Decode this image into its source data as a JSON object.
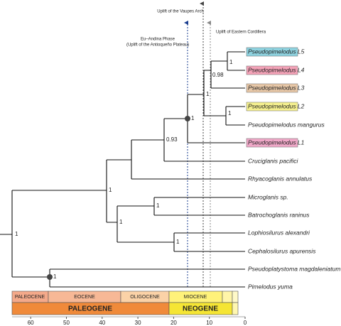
{
  "annotations": [
    "Uplift of the Vaupes Arch",
    "Eu–Andina Phase",
    "(Uplift of the Antioqueño Plateau)",
    "Uplift of Eastern Cordillera"
  ],
  "tips": [
    "Pseudopimelodus L5",
    "Pseudopimelodus L4",
    "Pseudopimelodus L3",
    "Pseudopimelodus L2",
    "Pseudopimelodus mangurus",
    "Pseudopimelodus L1",
    "Cruciglanis pacifici",
    "Rhyacoglanis annulatus",
    "Microglanis sp.",
    "Batrochoglanis raninus",
    "Lophiosilurus alexandri",
    "Cephalosilurus apurensis",
    "Pseudoplatystoma magdaleniatum",
    "Pimelodus yuma"
  ],
  "supports": [
    "1",
    "1",
    "0.93",
    "1",
    "1",
    "0.98",
    "1",
    "1",
    "1",
    "1",
    "1",
    "1"
  ],
  "timescale": {
    "epochs": [
      "PALEOCENE",
      "EOCENE",
      "OLIGOCENE",
      "MIOCENE"
    ],
    "periods": [
      "PALEOGENE",
      "NEOGENE"
    ],
    "ticks": [
      60,
      50,
      40,
      30,
      20,
      10,
      0
    ]
  }
}
